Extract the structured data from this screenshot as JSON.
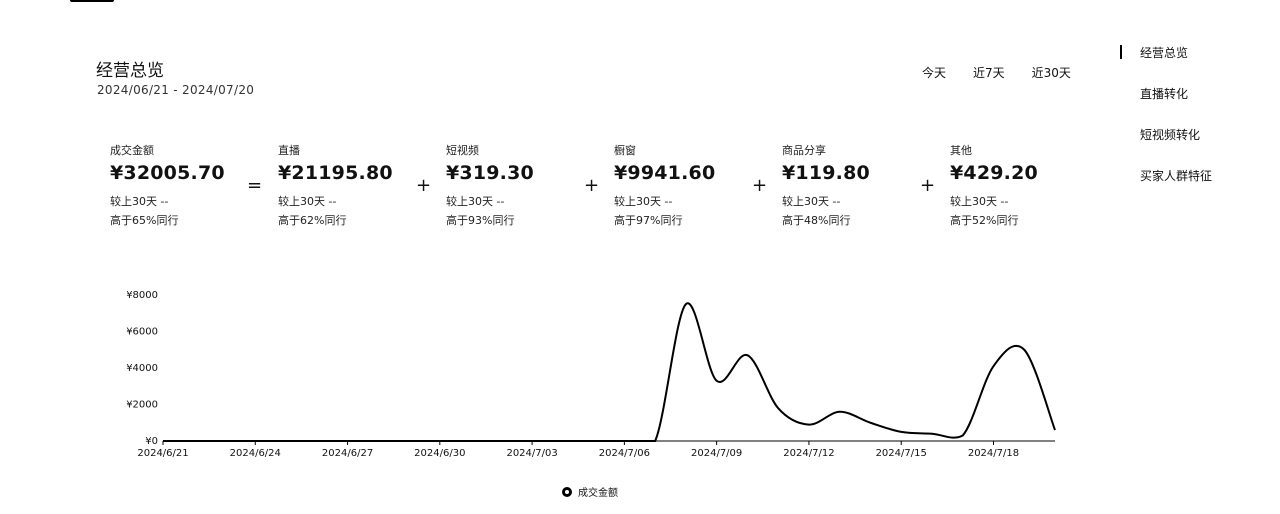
{
  "header": {
    "section_title": "经营总览",
    "date_range": "2024/06/21 - 2024/07/20"
  },
  "range_tabs": [
    {
      "label": "今天"
    },
    {
      "label": "近7天"
    },
    {
      "label": "近30天"
    }
  ],
  "right_nav": [
    {
      "label": "经营总览",
      "active": true
    },
    {
      "label": "直播转化",
      "active": false
    },
    {
      "label": "短视频转化",
      "active": false
    },
    {
      "label": "买家人群特征",
      "active": false
    }
  ],
  "metrics": [
    {
      "label": "成交金额",
      "value": "¥32005.70",
      "compare": "较上30天 --",
      "peer": "高于65%同行"
    },
    {
      "label": "直播",
      "value": "¥21195.80",
      "compare": "较上30天 --",
      "peer": "高于62%同行"
    },
    {
      "label": "短视频",
      "value": "¥319.30",
      "compare": "较上30天 --",
      "peer": "高于93%同行"
    },
    {
      "label": "橱窗",
      "value": "¥9941.60",
      "compare": "较上30天 --",
      "peer": "高于97%同行"
    },
    {
      "label": "商品分享",
      "value": "¥119.80",
      "compare": "较上30天 --",
      "peer": "高于48%同行"
    },
    {
      "label": "其他",
      "value": "¥429.20",
      "compare": "较上30天 --",
      "peer": "高于52%同行"
    }
  ],
  "operators": [
    "=",
    "+",
    "+",
    "+",
    "+"
  ],
  "chart_data": {
    "type": "line",
    "title": "",
    "xlabel": "",
    "ylabel": "",
    "ylim": [
      0,
      8000
    ],
    "y_ticks": [
      "¥0",
      "¥2000",
      "¥4000",
      "¥6000",
      "¥8000"
    ],
    "y_tick_values": [
      0,
      2000,
      4000,
      6000,
      8000
    ],
    "x_tick_labels": [
      "2024/6/21",
      "2024/6/24",
      "2024/6/27",
      "2024/6/30",
      "2024/7/03",
      "2024/7/06",
      "2024/7/09",
      "2024/7/12",
      "2024/7/15",
      "2024/7/18"
    ],
    "x_tick_indices": [
      0,
      3,
      6,
      9,
      12,
      15,
      18,
      21,
      24,
      27
    ],
    "grid": false,
    "legend_position": "bottom",
    "color": "#000000",
    "series": [
      {
        "name": "成交金额",
        "x": [
          "2024/6/21",
          "2024/6/22",
          "2024/6/23",
          "2024/6/24",
          "2024/6/25",
          "2024/6/26",
          "2024/6/27",
          "2024/6/28",
          "2024/6/29",
          "2024/6/30",
          "2024/7/01",
          "2024/7/02",
          "2024/7/03",
          "2024/7/04",
          "2024/7/05",
          "2024/7/06",
          "2024/7/07",
          "2024/7/08",
          "2024/7/09",
          "2024/7/10",
          "2024/7/11",
          "2024/7/12",
          "2024/7/13",
          "2024/7/14",
          "2024/7/15",
          "2024/7/16",
          "2024/7/17",
          "2024/7/18",
          "2024/7/19",
          "2024/7/20"
        ],
        "values": [
          0,
          0,
          0,
          0,
          0,
          0,
          0,
          0,
          0,
          0,
          0,
          0,
          0,
          0,
          0,
          0,
          0,
          7500,
          3300,
          4700,
          1800,
          900,
          1600,
          1000,
          500,
          400,
          300,
          4100,
          5000,
          600
        ]
      }
    ]
  }
}
